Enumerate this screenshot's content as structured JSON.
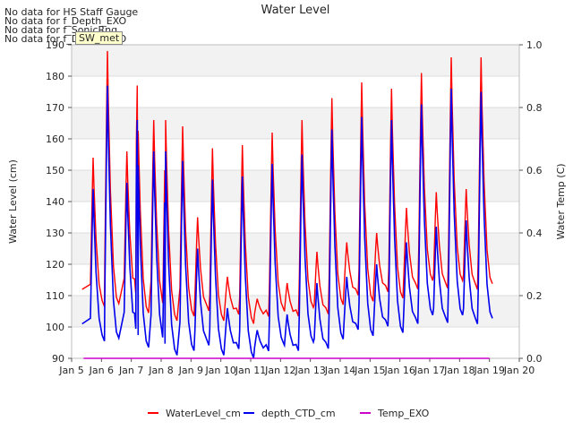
{
  "no_data_messages": [
    "No data for HS Staff Gauge",
    "No data for f_Depth_EXO",
    "No data for f_SonicRng",
    "No data for f_Depth_EXO"
  ],
  "site_badge": "SW_met",
  "chart_data": {
    "type": "line",
    "title": "Water Level",
    "ylabel": "Water Level (cm)",
    "y2label": "Water Temp (C)",
    "ylim": [
      90,
      190
    ],
    "y2lim": [
      0.0,
      1.0
    ],
    "x_tick_labels": [
      "Jan 5",
      "Jan 6",
      "Jan 7",
      "Jan 8",
      "Jan 9",
      "Jan 10",
      "Jan 11",
      "Jan 12",
      "Jan 13",
      "Jan 14",
      "Jan 15",
      "Jan 16",
      "Jan 17",
      "Jan 18",
      "Jan 19",
      "Jan 20"
    ],
    "y_ticks": [
      90,
      100,
      110,
      120,
      130,
      140,
      150,
      160,
      170,
      180,
      190
    ],
    "y2_ticks": [
      "0.0",
      "0.2",
      "0.4",
      "0.6",
      "0.8",
      "1.0"
    ],
    "grid": "horizontal",
    "legend_position": "bottom",
    "colors": {
      "WaterLevel_cm": "#ff0000",
      "depth_CTD_cm": "#0000ee",
      "Temp_EXO": "#cc00cc",
      "band": "#f2f2f2"
    },
    "series": [
      {
        "name": "WaterLevel_cm",
        "peaks": [
          {
            "day": 5.72,
            "value": 154
          },
          {
            "day": 6.2,
            "value": 188
          },
          {
            "day": 6.85,
            "value": 156
          },
          {
            "day": 7.2,
            "value": 177
          },
          {
            "day": 7.75,
            "value": 166
          },
          {
            "day": 8.15,
            "value": 166
          },
          {
            "day": 8.72,
            "value": 164
          },
          {
            "day": 9.22,
            "value": 135
          },
          {
            "day": 9.72,
            "value": 157
          },
          {
            "day": 10.22,
            "value": 116
          },
          {
            "day": 10.72,
            "value": 158
          },
          {
            "day": 11.22,
            "value": 109
          },
          {
            "day": 11.72,
            "value": 162
          },
          {
            "day": 12.22,
            "value": 114
          },
          {
            "day": 12.72,
            "value": 166
          },
          {
            "day": 13.22,
            "value": 124
          },
          {
            "day": 13.72,
            "value": 173
          },
          {
            "day": 14.22,
            "value": 127
          },
          {
            "day": 14.72,
            "value": 178
          },
          {
            "day": 15.22,
            "value": 130
          },
          {
            "day": 15.72,
            "value": 176
          },
          {
            "day": 16.22,
            "value": 138
          },
          {
            "day": 16.72,
            "value": 181
          },
          {
            "day": 17.22,
            "value": 143
          },
          {
            "day": 17.72,
            "value": 186
          },
          {
            "day": 18.22,
            "value": 144
          },
          {
            "day": 18.72,
            "value": 186
          }
        ]
      },
      {
        "name": "depth_CTD_cm",
        "peaks": [
          {
            "day": 5.72,
            "value": 144
          },
          {
            "day": 6.2,
            "value": 177
          },
          {
            "day": 6.85,
            "value": 146
          },
          {
            "day": 7.2,
            "value": 166
          },
          {
            "day": 7.75,
            "value": 156
          },
          {
            "day": 8.15,
            "value": 156
          },
          {
            "day": 8.72,
            "value": 153
          },
          {
            "day": 9.22,
            "value": 125
          },
          {
            "day": 9.72,
            "value": 147
          },
          {
            "day": 10.22,
            "value": 106
          },
          {
            "day": 10.72,
            "value": 148
          },
          {
            "day": 11.22,
            "value": 99
          },
          {
            "day": 11.72,
            "value": 152
          },
          {
            "day": 12.22,
            "value": 104
          },
          {
            "day": 12.72,
            "value": 155
          },
          {
            "day": 13.22,
            "value": 114
          },
          {
            "day": 13.72,
            "value": 163
          },
          {
            "day": 14.22,
            "value": 116
          },
          {
            "day": 14.72,
            "value": 167
          },
          {
            "day": 15.22,
            "value": 120
          },
          {
            "day": 15.72,
            "value": 166
          },
          {
            "day": 16.22,
            "value": 127
          },
          {
            "day": 16.72,
            "value": 171
          },
          {
            "day": 17.22,
            "value": 132
          },
          {
            "day": 17.72,
            "value": 176
          },
          {
            "day": 18.22,
            "value": 134
          },
          {
            "day": 18.72,
            "value": 175
          }
        ]
      },
      {
        "name": "Temp_EXO",
        "constant_value": 0.0,
        "x_range": [
          5.4,
          19.0
        ]
      }
    ],
    "baseline": {
      "WaterLevel_cm": [
        112,
        101
      ],
      "depth_CTD_cm": [
        101,
        90
      ]
    }
  }
}
